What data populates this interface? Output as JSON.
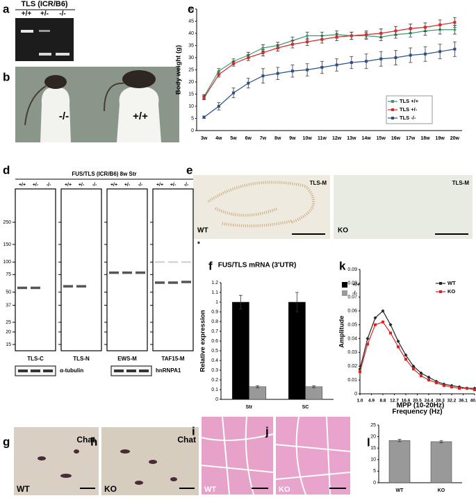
{
  "panel_labels": [
    "a",
    "b",
    "c",
    "d",
    "e",
    "f",
    "k",
    "g",
    "h",
    "i",
    "j",
    "l"
  ],
  "gel": {
    "title": "TLS (ICR/B6)",
    "lanes": [
      "+/+",
      "+/-",
      "-/-"
    ]
  },
  "mice": {
    "labels": [
      "-/-",
      "+/+"
    ]
  },
  "western": {
    "title": "FUS/TLS (ICR/B6) 8w Str",
    "lanes": [
      "+/+",
      "+/-",
      "-/-"
    ],
    "markers": [
      250,
      150,
      100,
      75,
      50,
      37,
      25,
      20,
      15
    ],
    "blots": [
      "TLS-C",
      "TLS-N",
      "EWS-M",
      "TAF15-M"
    ],
    "loading": [
      "α-tubulin",
      "hnRNPA1"
    ],
    "asterisk": "*"
  },
  "ihc": {
    "antibody": "TLS-M",
    "genotypes": [
      "WT",
      "KO"
    ]
  },
  "histology": {
    "stain": "Chat",
    "genotypes": [
      "WT",
      "KO"
    ]
  },
  "chart_data": [
    {
      "type": "line",
      "ylabel": "Body weight (g)",
      "categories": [
        "3w",
        "4w",
        "5w",
        "6w",
        "7w",
        "8w",
        "9w",
        "10w",
        "11w",
        "12w",
        "13w",
        "14w",
        "15w",
        "16w",
        "17w",
        "18w",
        "19w",
        "20w"
      ],
      "ylim": [
        0,
        50
      ],
      "yticks": [
        0,
        5,
        10,
        15,
        20,
        25,
        30,
        35,
        40,
        45,
        50
      ],
      "legend": "right",
      "series": [
        {
          "name": "TLS +/+",
          "color": "#3c9a6e",
          "values": [
            14,
            24.5,
            28.5,
            31,
            34,
            35,
            37,
            39,
            39,
            39.5,
            39,
            39,
            38.5,
            39.5,
            40,
            41,
            41.5,
            41.5
          ],
          "errors": [
            0.8,
            1,
            1,
            1.2,
            1.3,
            1.3,
            1.5,
            1.5,
            1.5,
            1.5,
            1.5,
            1.5,
            1.5,
            1.5,
            1.5,
            1.8,
            1.8,
            1.8
          ]
        },
        {
          "name": "TLS +/-",
          "color": "#d42a2a",
          "values": [
            13.5,
            23,
            27.5,
            30,
            32,
            34,
            35.5,
            36.5,
            37.5,
            38.5,
            39,
            39.5,
            40,
            41,
            42,
            42.5,
            43.5,
            44.5
          ],
          "errors": [
            0.8,
            1,
            1,
            1.2,
            1.3,
            1.3,
            1.5,
            1.5,
            1.5,
            1.5,
            1.5,
            1.5,
            1.8,
            1.8,
            1.8,
            1.8,
            2,
            2
          ]
        },
        {
          "name": "TLS -/-",
          "color": "#2b4f8c",
          "values": [
            5.5,
            10,
            15.5,
            19.5,
            22.5,
            23.5,
            24.5,
            25,
            26,
            27,
            28,
            28.5,
            29.5,
            30,
            31,
            31.5,
            32.5,
            33.5
          ],
          "errors": [
            0.5,
            1.5,
            2,
            2,
            3,
            2.5,
            2.5,
            2.5,
            2.5,
            2.5,
            2.5,
            3,
            3,
            3,
            3,
            3,
            3,
            3
          ]
        }
      ]
    },
    {
      "type": "bar",
      "title": "FUS/TLS mRNA (3'UTR)",
      "ylabel": "Relative expression",
      "categories": [
        "Str",
        "SC"
      ],
      "ylim": [
        0,
        1.2
      ],
      "yticks": [
        0,
        0.1,
        0.2,
        0.3,
        0.4,
        0.5,
        0.6,
        0.7,
        0.8,
        0.9,
        1,
        1.1,
        1.2
      ],
      "legend": "upper right",
      "series": [
        {
          "name": "+/+",
          "color": "#000000",
          "values": [
            1,
            1
          ],
          "errors": [
            0.07,
            0.1
          ]
        },
        {
          "name": "-/-",
          "color": "#999999",
          "values": [
            0.13,
            0.13
          ],
          "errors": [
            0.01,
            0.01
          ]
        }
      ]
    },
    {
      "type": "line",
      "xlabel": "Frequency (Hz)",
      "ylabel": "Amplitude",
      "x": [
        1,
        3.6,
        6.2,
        8.8,
        11.4,
        14,
        16.6,
        19.2,
        21.8,
        24.4,
        27,
        29.6,
        32.2,
        34.8,
        37.4,
        40
      ],
      "xlim": [
        1,
        40
      ],
      "xticks": [
        {
          "value": 1,
          "label": "1.0"
        },
        4.9,
        8.8,
        12.7,
        16.6,
        20.5,
        24.4,
        28.3,
        32.2,
        36.1,
        {
          "value": 40,
          "label": "40.0"
        }
      ],
      "ylim": [
        0,
        0.09
      ],
      "yticks": [
        0,
        0.01,
        0.02,
        0.03,
        0.04,
        0.05,
        0.06,
        0.07,
        0.08,
        0.09
      ],
      "legend": "upper right",
      "series": [
        {
          "name": "WT",
          "color": "#222222",
          "values": [
            0.018,
            0.04,
            0.055,
            0.06,
            0.05,
            0.038,
            0.028,
            0.02,
            0.015,
            0.012,
            0.009,
            0.007,
            0.006,
            0.005,
            0.004,
            0.004
          ]
        },
        {
          "name": "KO",
          "color": "#e02020",
          "values": [
            0.016,
            0.036,
            0.05,
            0.052,
            0.044,
            0.034,
            0.025,
            0.018,
            0.013,
            0.01,
            0.008,
            0.006,
            0.005,
            0.004,
            0.004,
            0.003
          ]
        }
      ]
    },
    {
      "type": "bar",
      "title": "MPP (10-20Hz)",
      "categories": [
        "WT",
        "KO"
      ],
      "ylim": [
        0,
        25
      ],
      "yticks": [
        0,
        5,
        10,
        15,
        20,
        25
      ],
      "series": [
        {
          "color": "#999999",
          "values": [
            18.3,
            17.8
          ],
          "errors": [
            0.5,
            0.5
          ]
        }
      ]
    }
  ]
}
